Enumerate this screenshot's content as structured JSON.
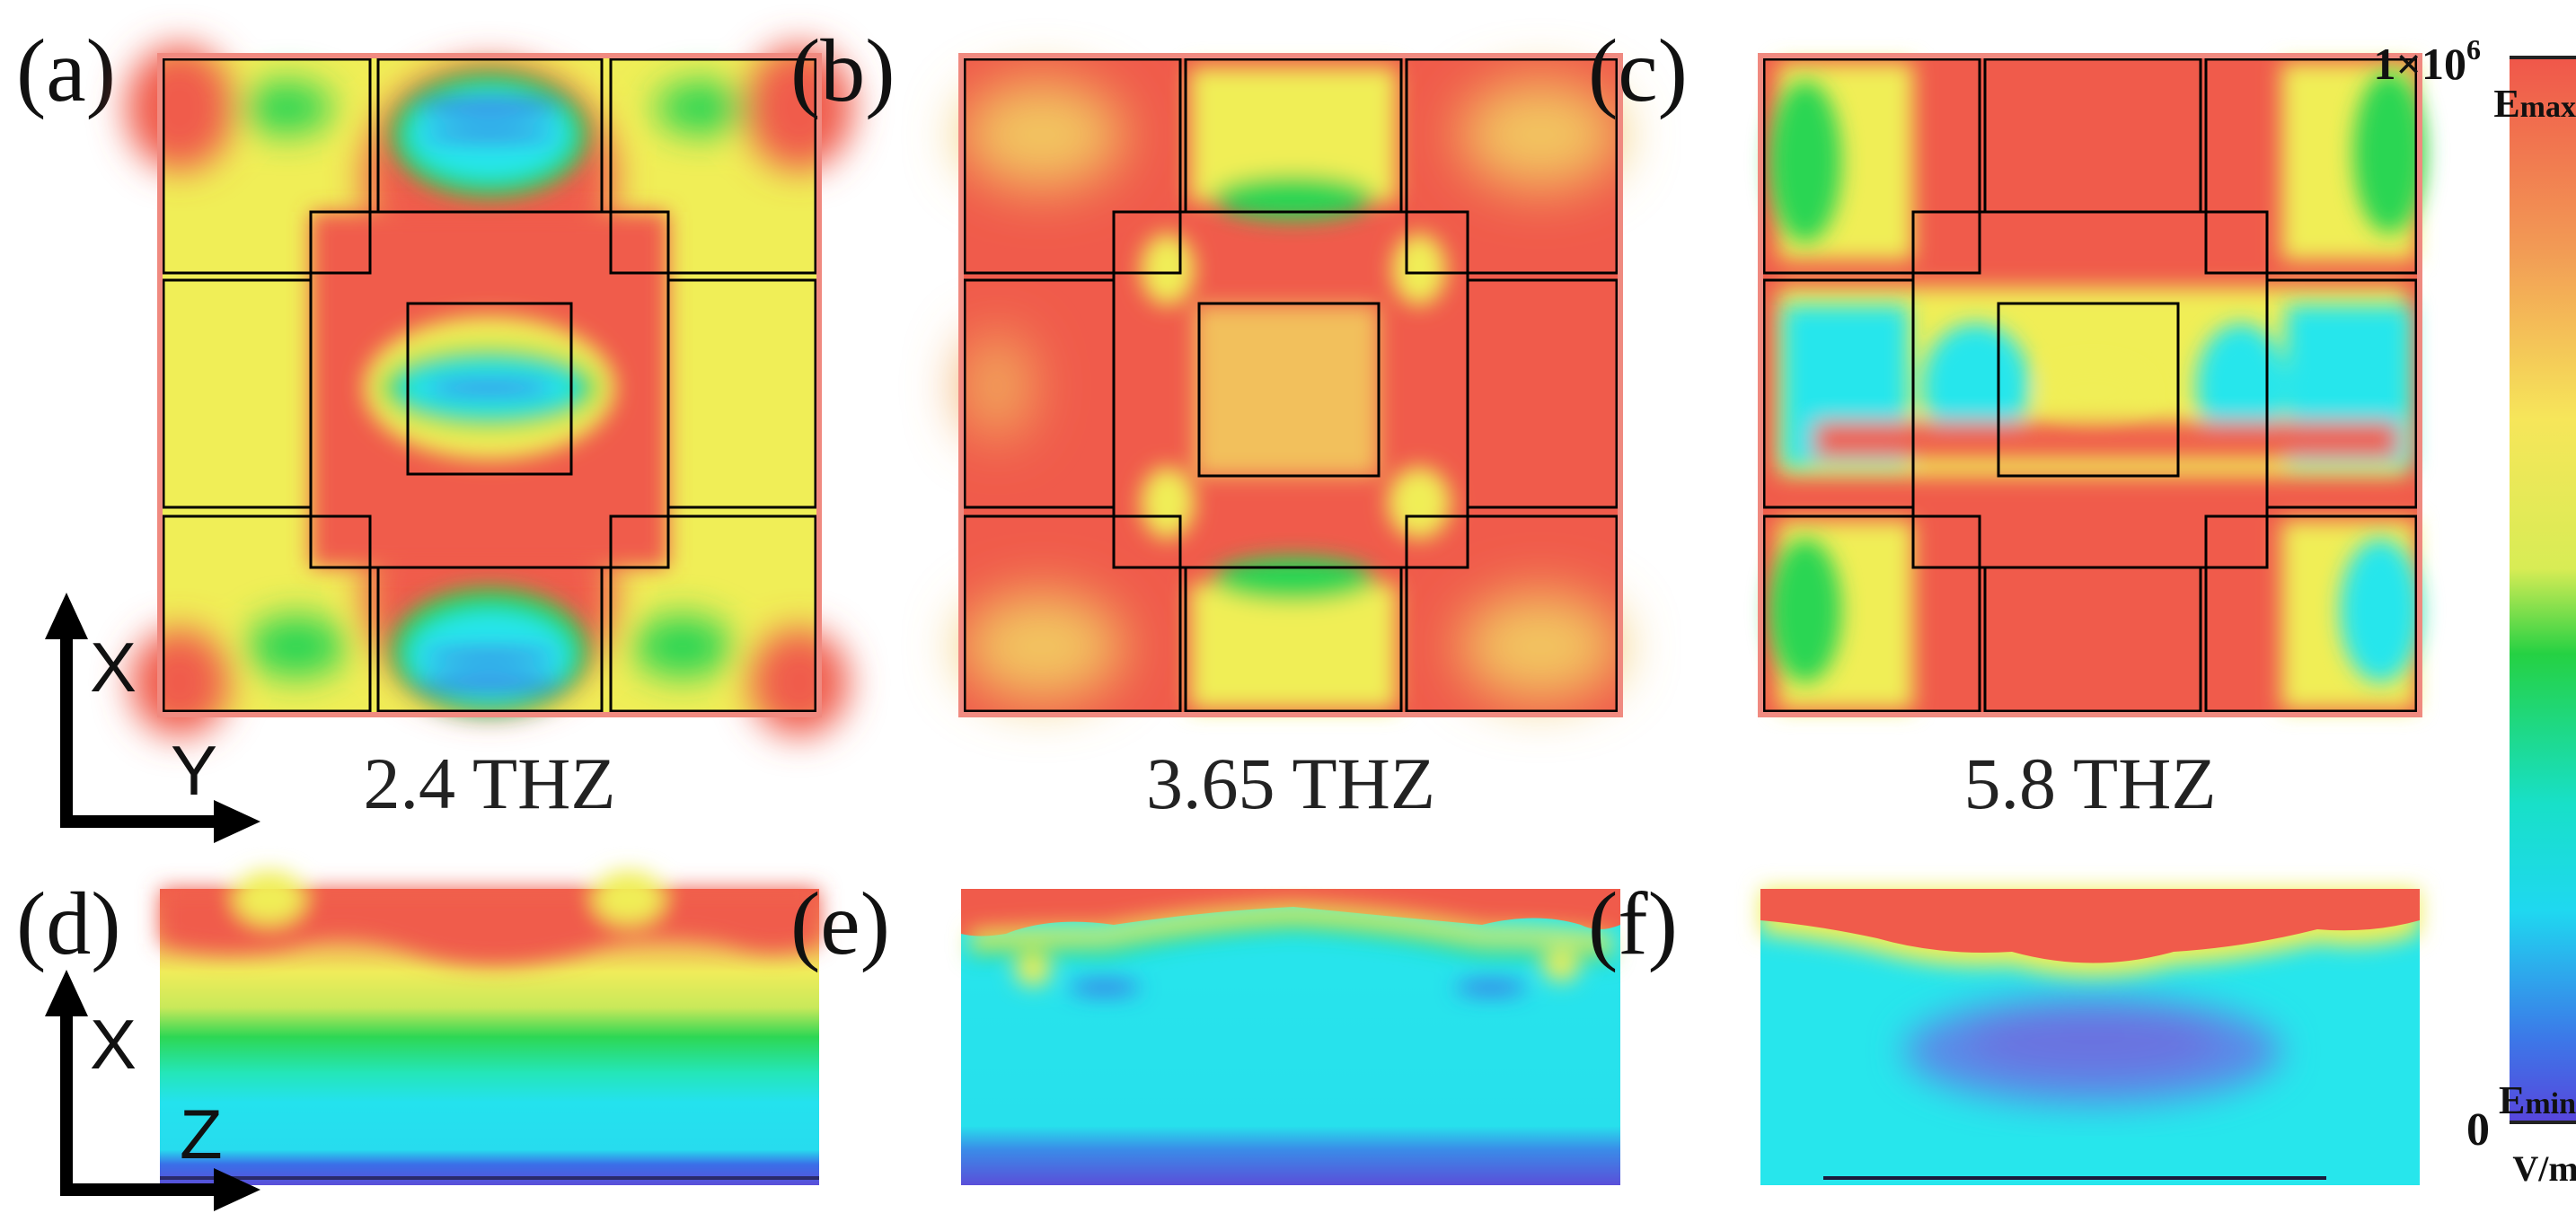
{
  "panels": {
    "a": {
      "label": "(a)",
      "freq": "2.4 THZ"
    },
    "b": {
      "label": "(b)",
      "freq": "3.65 THZ"
    },
    "c": {
      "label": "(c)",
      "freq": "5.8 THZ"
    },
    "d": {
      "label": "(d)"
    },
    "e": {
      "label": "(e)"
    },
    "f": {
      "label": "(f)"
    }
  },
  "axes_top": {
    "vertical": "X",
    "horizontal": "Y"
  },
  "axes_bottom": {
    "vertical": "X",
    "horizontal": "Z"
  },
  "colorbar": {
    "max_value": "1×10",
    "max_exponent": "6",
    "min_value": "0",
    "emax_main": "E",
    "emax_sub": "max",
    "emin_main": "E",
    "emin_sub": "min",
    "unit": "V/m",
    "colors": [
      "#f0564a",
      "#f29a55",
      "#f6e65a",
      "#d8ec55",
      "#25d143",
      "#18e0c8",
      "#1fd8f0",
      "#3c78e8",
      "#5844dc"
    ]
  },
  "palette": {
    "red": "#f05b4b",
    "yellow": "#f0ee57",
    "lime": "#cde85a",
    "green": "#2ad653",
    "cyan": "#27e6ec",
    "blue": "#3a6fe8",
    "violet": "#5a4fd9"
  }
}
